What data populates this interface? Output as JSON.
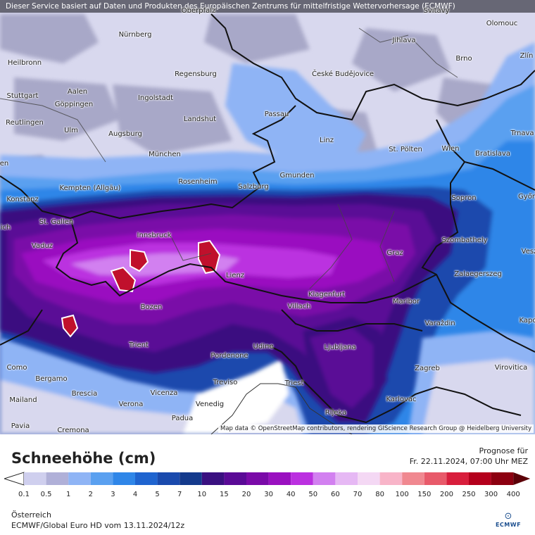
{
  "banner": "Dieser Service basiert auf Daten und Produkten des Europäischen Zentrums für mittelfristige Wettervorhersage (ECMWF)",
  "attribution": "Map data © OpenStreetMap contributors, rendering GIScience Research Group @ Heidelberg University",
  "map": {
    "cities": [
      "Oberpfalz",
      "Svitavy",
      "Nürnberg",
      "Jihlava",
      "Olomouc",
      "Heilbronn",
      "Brno",
      "Zlín",
      "Regensburg",
      "České Budějovice",
      "Aalen",
      "Ingolstadt",
      "Stuttgart",
      "Göppingen",
      "Landshut",
      "Passau",
      "Reutlingen",
      "Ulm",
      "Augsburg",
      "Linz",
      "Trnava",
      "St. Pölten",
      "Wien",
      "Bratislava",
      "München",
      "Gmunden",
      "Kempten (Allgäu)",
      "Rosenheim",
      "Salzburg",
      "Konstanz",
      "Sopron",
      "Győr",
      "St. Gallen",
      "Innsbruck",
      "Szombathely",
      "Vaduz",
      "Graz",
      "Lienz",
      "Zalaegerszeg",
      "Klagenfurt",
      "Villach",
      "Maribor",
      "Bozen",
      "Varaždin",
      "Trient",
      "Udine",
      "Ljubljana",
      "Pordenone",
      "Como",
      "Zagreb",
      "Virovitica",
      "Bergamo",
      "Treviso",
      "Triest",
      "Brescia",
      "Vicenza",
      "Mailand",
      "Verona",
      "Venedig",
      "Karlovac",
      "Rijeka",
      "Padua",
      "Pavia",
      "Cremona",
      "Kapo",
      "Vesz",
      "en",
      "ich"
    ]
  },
  "legend": {
    "title": "Schneehöhe (cm)",
    "forecast_label": "Prognose für",
    "forecast_time": "Fr. 22.11.2024, 07:00 Uhr MEZ",
    "classes": [
      "0.1",
      "0.5",
      "1",
      "2",
      "3",
      "4",
      "5",
      "7",
      "10",
      "15",
      "20",
      "30",
      "40",
      "50",
      "60",
      "70",
      "80",
      "100",
      "150",
      "200",
      "250",
      "300",
      "400"
    ],
    "colors": [
      "#ffffff",
      "#cfcfee",
      "#b0b0d8",
      "#8fb4f5",
      "#5aa0f0",
      "#2f86e8",
      "#1f64cf",
      "#1a4aad",
      "#143a8c",
      "#3a1080",
      "#5a0a96",
      "#7a0aa8",
      "#9a10c0",
      "#bb30e0",
      "#d280f0",
      "#e6b8f4",
      "#f4d8f4",
      "#f8b4c8",
      "#f08890",
      "#e85a6a",
      "#d81e3c",
      "#b4001c",
      "#8c0010",
      "#5c0008"
    ],
    "country": "Österreich",
    "model": "ECMWF/Global Euro HD vom  13.11.2024/12z",
    "logo_text": "ECMWF"
  }
}
